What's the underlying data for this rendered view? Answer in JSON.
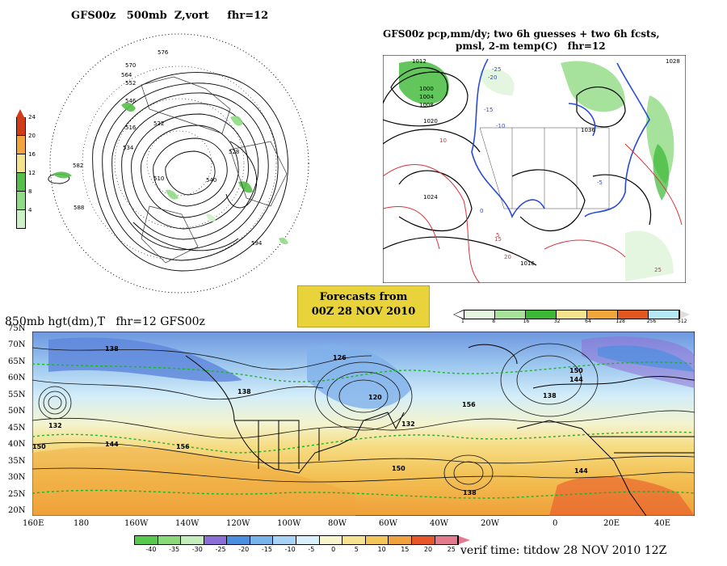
{
  "panels": {
    "top_left": {
      "title": "GFS00z   500mb  Z,vort     fhr=12",
      "contour_labels": [
        "576",
        "570",
        "564",
        "552",
        "546",
        "540",
        "534",
        "528",
        "522",
        "516",
        "510",
        "582",
        "588",
        "594"
      ],
      "legend": {
        "labels": [
          "24",
          "20",
          "16",
          "12",
          "8",
          "4"
        ],
        "colors": [
          "#d23b16",
          "#f0a63a",
          "#f4e28c",
          "#55bf4a",
          "#90dc84",
          "#cdf1c6"
        ]
      }
    },
    "top_right": {
      "title_line1": "GFS00z pcp,mm/dy; two 6h guesses + two 6h fcsts,",
      "title_line2": "pmsl, 2-m temp(C)   fhr=12",
      "pressure_labels": [
        "1012",
        "1000",
        "1004",
        "1008",
        "1020",
        "1024",
        "1016",
        "1028",
        "1036"
      ],
      "temp_labels": [
        "-10",
        "-15",
        "-20",
        "-25",
        "-5",
        "0",
        "5",
        "10",
        "15",
        "20",
        "25"
      ],
      "legend": {
        "labels": [
          "1",
          "8",
          "16",
          "32",
          "64",
          "128",
          "256",
          "512"
        ],
        "colors": [
          "#e4f6df",
          "#a6e29b",
          "#3bb835",
          "#f4e28c",
          "#f0a63a",
          "#e2561f",
          "#b5e7f5"
        ]
      }
    },
    "banner": {
      "line1": "Forecasts from",
      "line2": "00Z 28 NOV 2010"
    },
    "bottom": {
      "title": "850mb hgt(dm),T   fhr=12 GFS00z",
      "lat_labels": [
        "75N",
        "70N",
        "65N",
        "60N",
        "55N",
        "50N",
        "45N",
        "40N",
        "35N",
        "30N",
        "25N",
        "20N"
      ],
      "lon_labels": [
        "160E",
        "180",
        "160W",
        "140W",
        "120W",
        "100W",
        "80W",
        "60W",
        "40W",
        "20W",
        "0",
        "20E",
        "40E"
      ],
      "height_labels": [
        "138",
        "126",
        "132",
        "120",
        "150",
        "144",
        "156",
        "138",
        "150",
        "132",
        "144",
        "138",
        "156",
        "150",
        "144",
        "138"
      ],
      "legend": {
        "labels": [
          "-40",
          "-35",
          "-30",
          "-25",
          "-20",
          "-15",
          "-10",
          "-5",
          "0",
          "5",
          "10",
          "15",
          "20",
          "25"
        ],
        "colors": [
          "#57c94c",
          "#8ad97b",
          "#c5edbb",
          "#8b6fd6",
          "#4b8fe0",
          "#79b3ec",
          "#a9d3f5",
          "#d9effb",
          "#f8f5cc",
          "#f7e38f",
          "#f4c55a",
          "#f0a33c",
          "#e8572a",
          "#e37a8d"
        ]
      },
      "verif_time": "verif time: titdow 28 NOV 2010 12Z"
    }
  }
}
